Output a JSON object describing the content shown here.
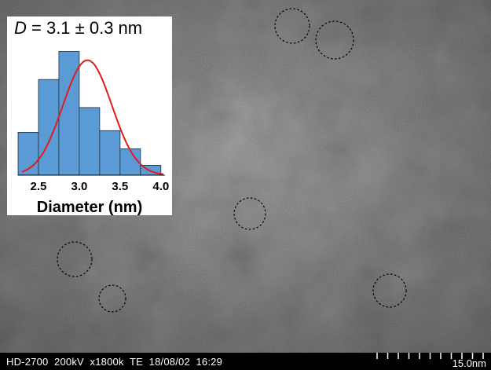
{
  "status_bar": {
    "text": "HD-2700  200kV  x1800k  TE  18/08/02  16:29",
    "scale_bar_label": "15.0nm"
  },
  "inset": {
    "title_symbol": "D",
    "title_rest": " = 3.1 ± 0.3 nm",
    "xlabel": "Diameter (nm)"
  },
  "chart_data": {
    "type": "bar",
    "bin_edges": [
      2.25,
      2.5,
      2.75,
      3.0,
      3.25,
      3.5,
      3.75,
      4.0
    ],
    "values": [
      0.26,
      0.58,
      0.75,
      0.41,
      0.27,
      0.16,
      0.06
    ],
    "xticks": [
      "2.5",
      "3.0",
      "3.5",
      "4.0"
    ],
    "xlim": [
      2.25,
      4.05
    ],
    "ylim": [
      0,
      0.8
    ],
    "fit": {
      "type": "gaussian",
      "mean": 3.1,
      "sd": 0.3,
      "color": "#e41a1c"
    },
    "bar_color": "#5b9bd5",
    "xlabel": "Diameter (nm)",
    "title": "D = 3.1 ± 0.3 nm"
  },
  "circled_particles": [
    {
      "label": "particle-1"
    },
    {
      "label": "particle-2"
    },
    {
      "label": "particle-3"
    },
    {
      "label": "particle-4"
    },
    {
      "label": "particle-5"
    },
    {
      "label": "particle-6"
    }
  ]
}
